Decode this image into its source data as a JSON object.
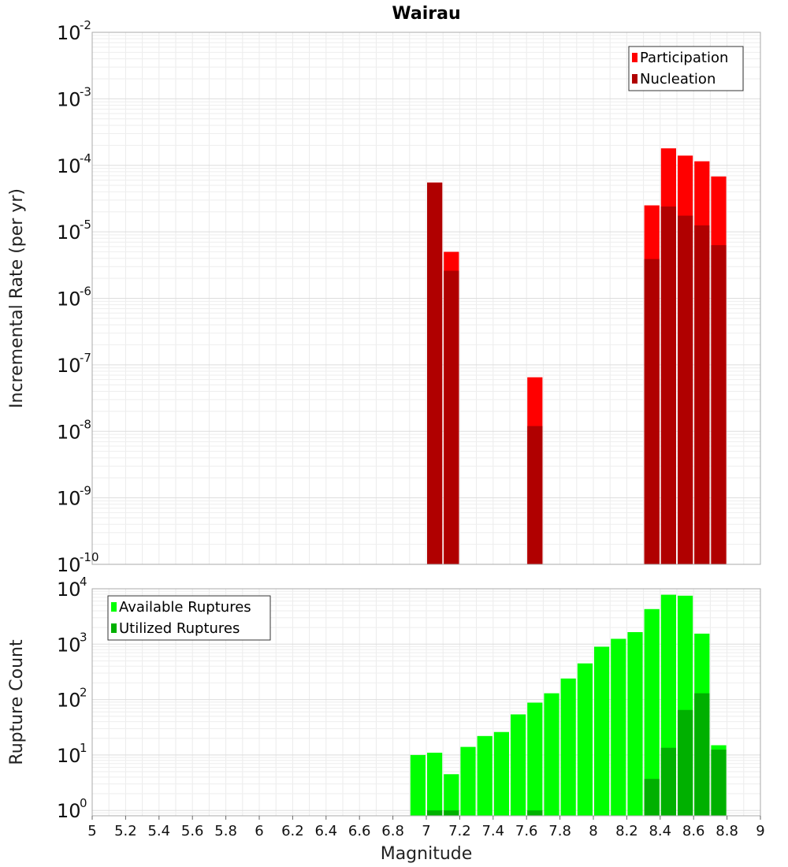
{
  "chart_data": [
    {
      "type": "bar",
      "title": "Wairau",
      "ylabel": "Incremental Rate (per yr)",
      "yscale": "log",
      "ylim": [
        1e-10,
        0.01
      ],
      "xlim": [
        5,
        9
      ],
      "bar_width": 0.1,
      "legend": {
        "placement": "top-right",
        "entries": [
          {
            "name": "Participation",
            "color": "#ff0000"
          },
          {
            "name": "Nucleation",
            "color": "#b00000"
          }
        ]
      },
      "series": [
        {
          "name": "Participation",
          "color": "#ff0000",
          "x": [
            7.05,
            7.15,
            7.65,
            8.35,
            8.45,
            8.55,
            8.65,
            8.75
          ],
          "values": [
            5.5e-05,
            5e-06,
            6.5e-08,
            2.5e-05,
            0.00018,
            0.00014,
            0.000115,
            6.8e-05
          ]
        },
        {
          "name": "Nucleation",
          "color": "#b00000",
          "x": [
            7.05,
            7.15,
            7.65,
            8.35,
            8.45,
            8.55,
            8.65,
            8.75
          ],
          "values": [
            5.5e-05,
            2.6e-06,
            1.2e-08,
            3.9e-06,
            2.4e-05,
            1.75e-05,
            1.25e-05,
            6.3e-06
          ]
        }
      ]
    },
    {
      "type": "bar",
      "xlabel": "Magnitude",
      "ylabel": "Rupture Count",
      "yscale": "log",
      "ylim": [
        0.8,
        10000
      ],
      "xlim": [
        5,
        9
      ],
      "bar_width": 0.1,
      "x_ticks": [
        "5",
        "5.2",
        "5.4",
        "5.6",
        "5.8",
        "6",
        "6.2",
        "6.4",
        "6.6",
        "6.8",
        "7",
        "7.2",
        "7.4",
        "7.6",
        "7.8",
        "8",
        "8.2",
        "8.4",
        "8.6",
        "8.8",
        "9"
      ],
      "legend": {
        "placement": "top-left",
        "entries": [
          {
            "name": "Available Ruptures",
            "color": "#00ff00"
          },
          {
            "name": "Utilized Ruptures",
            "color": "#00b000"
          }
        ]
      },
      "series": [
        {
          "name": "Available Ruptures",
          "color": "#00ff00",
          "x": [
            6.95,
            7.05,
            7.15,
            7.25,
            7.35,
            7.45,
            7.55,
            7.65,
            7.75,
            7.85,
            7.95,
            8.05,
            8.15,
            8.25,
            8.35,
            8.45,
            8.55,
            8.65,
            8.75
          ],
          "values": [
            10,
            11,
            4.5,
            14,
            22,
            26,
            54,
            88,
            130,
            240,
            450,
            900,
            1250,
            1650,
            4300,
            7800,
            7500,
            1550,
            15
          ]
        },
        {
          "name": "Utilized Ruptures",
          "color": "#00b000",
          "x": [
            7.05,
            7.15,
            7.65,
            8.35,
            8.45,
            8.55,
            8.65,
            8.75
          ],
          "values": [
            1,
            1,
            1,
            3.7,
            13.5,
            65,
            130,
            12.5
          ]
        }
      ]
    }
  ]
}
